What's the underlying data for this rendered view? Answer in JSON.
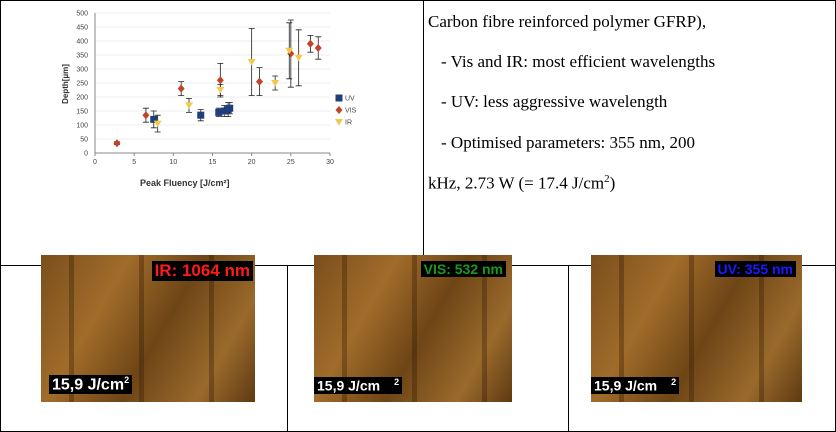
{
  "chart": {
    "type": "scatter",
    "xlabel": "Peak Fluency [J/cm²]",
    "ylabel": "Depth[µm]",
    "xlim": [
      0,
      30
    ],
    "xticks": [
      0,
      5,
      10,
      15,
      20,
      25,
      30
    ],
    "ylim": [
      0,
      500
    ],
    "yticks": [
      0,
      50,
      100,
      150,
      200,
      250,
      300,
      350,
      400,
      450,
      500
    ],
    "series": [
      {
        "name": "UV",
        "color": "#1f3f7a",
        "marker": "square",
        "x": [
          7.5,
          13.5,
          15.8,
          16.5,
          17,
          17.2
        ],
        "values": [
          120,
          135,
          145,
          150,
          155,
          160
        ],
        "errors": [
          30,
          20,
          15,
          20,
          25,
          20
        ]
      },
      {
        "name": "VIS",
        "color": "#c0432a",
        "marker": "diamond",
        "x": [
          2.8,
          6.5,
          11,
          16,
          21,
          25,
          27.5,
          28.5
        ],
        "values": [
          35,
          135,
          230,
          260,
          255,
          355,
          390,
          375
        ],
        "errors": [
          5,
          25,
          25,
          60,
          50,
          120,
          30,
          40
        ]
      },
      {
        "name": "IR",
        "color": "#f2c94c",
        "marker": "triangle",
        "x": [
          8,
          12,
          16,
          20,
          23,
          24.8,
          26
        ],
        "values": [
          105,
          170,
          225,
          325,
          250,
          365,
          340
        ],
        "errors": [
          30,
          25,
          20,
          120,
          25,
          100,
          100
        ]
      }
    ]
  },
  "text_lines": [
    "Carbon fibre reinforced polymer GFRP),",
    "- Vis and IR: most efficient wavelengths",
    "- UV: less aggressive wavelength",
    "- Optimised parameters: 355 nm, 200"
  ],
  "last_line": {
    "text": "kHz,  2.73 W (= 17.4 J/cm",
    "sup": "2",
    "end": ")"
  },
  "images": [
    {
      "label": "IR: 1064 nm",
      "label_color": "#ff1a1a",
      "fluence": "15,9 J/cm",
      "sup": "2"
    },
    {
      "label": "VIS: 532 nm",
      "label_color": "#1a9a1a",
      "fluence": "15,9 J/cm",
      "sup": "2"
    },
    {
      "label": "UV: 355 nm",
      "label_color": "#1a1aff",
      "fluence": "15,9 J/cm",
      "sup": "2"
    }
  ]
}
